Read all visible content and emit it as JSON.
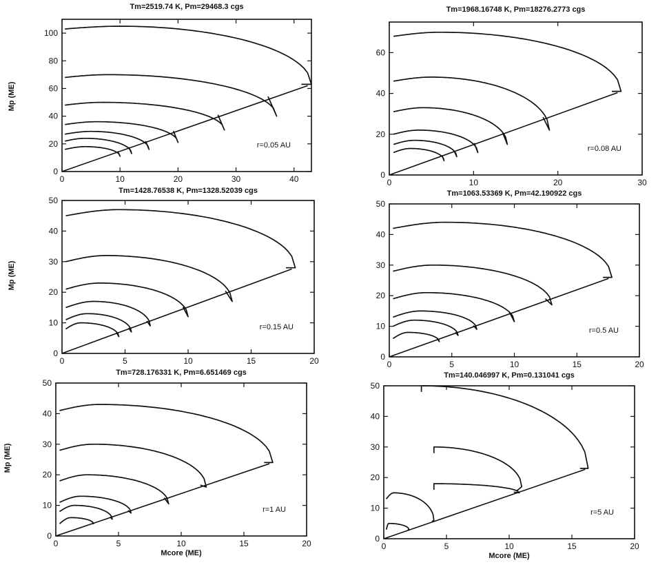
{
  "figure": {
    "y_axis_label": "Mp (ME)",
    "x_axis_label": "Mcore (ME)"
  },
  "chart_data": [
    {
      "type": "line",
      "title": "Tm=2519.74 K, Pm=29468.3 cgs",
      "annotation": "r=0.05 AU",
      "xlim": [
        0,
        43
      ],
      "ylim": [
        0,
        110
      ],
      "xticks": [
        0,
        10,
        20,
        30,
        40
      ],
      "yticks": [
        0,
        20,
        40,
        60,
        80,
        100
      ],
      "envelope_max": [
        43,
        63
      ],
      "curves": [
        {
          "start": 0.5,
          "peak_x": 4,
          "top": 18,
          "tip": [
            10,
            11
          ]
        },
        {
          "start": 0.5,
          "peak_x": 4,
          "top": 24,
          "tip": [
            12,
            13
          ]
        },
        {
          "start": 0.5,
          "peak_x": 5,
          "top": 29,
          "tip": [
            15,
            16
          ]
        },
        {
          "start": 0.5,
          "peak_x": 6,
          "top": 36,
          "tip": [
            20,
            21
          ]
        },
        {
          "start": 0.5,
          "peak_x": 7,
          "top": 50,
          "tip": [
            28,
            30
          ]
        },
        {
          "start": 0.5,
          "peak_x": 8,
          "top": 70,
          "tip": [
            37,
            40
          ]
        },
        {
          "start": 0.5,
          "peak_x": 10,
          "top": 105,
          "tip": [
            43,
            63
          ]
        }
      ]
    },
    {
      "type": "line",
      "title": "Tm=1968.16748 K, Pm=18276.2773 cgs",
      "annotation": "r=0.08 AU",
      "xlim": [
        0,
        30
      ],
      "ylim": [
        0,
        75
      ],
      "xticks": [
        0,
        10,
        20,
        30
      ],
      "yticks": [
        0,
        20,
        40,
        60
      ],
      "envelope_max": [
        27.5,
        41
      ],
      "curves": [
        {
          "start": 0.5,
          "peak_x": 2.5,
          "top": 13,
          "tip": [
            6.5,
            7
          ]
        },
        {
          "start": 0.5,
          "peak_x": 3,
          "top": 17,
          "tip": [
            8,
            9
          ]
        },
        {
          "start": 0.5,
          "peak_x": 3.5,
          "top": 22,
          "tip": [
            10.5,
            11
          ]
        },
        {
          "start": 0.5,
          "peak_x": 4,
          "top": 33,
          "tip": [
            14,
            15
          ]
        },
        {
          "start": 0.5,
          "peak_x": 5,
          "top": 48,
          "tip": [
            19,
            22
          ]
        },
        {
          "start": 0.5,
          "peak_x": 6,
          "top": 70,
          "tip": [
            27.5,
            41
          ]
        }
      ]
    },
    {
      "type": "line",
      "title": "Tm=1428.76538 K, Pm=1328.52039 cgs",
      "annotation": "r=0.15 AU",
      "xlim": [
        0,
        20
      ],
      "ylim": [
        0,
        50
      ],
      "xticks": [
        0,
        5,
        10,
        15,
        20
      ],
      "yticks": [
        0,
        10,
        20,
        30,
        40,
        50
      ],
      "envelope_max": [
        18.5,
        28
      ],
      "curves": [
        {
          "start": 0.3,
          "peak_x": 1.5,
          "top": 10,
          "tip": [
            4.5,
            5.5
          ]
        },
        {
          "start": 0.3,
          "peak_x": 2,
          "top": 13,
          "tip": [
            5.5,
            7
          ]
        },
        {
          "start": 0.3,
          "peak_x": 2.5,
          "top": 17,
          "tip": [
            7,
            9
          ]
        },
        {
          "start": 0.3,
          "peak_x": 3,
          "top": 23,
          "tip": [
            10,
            12
          ]
        },
        {
          "start": 0.3,
          "peak_x": 3.5,
          "top": 32,
          "tip": [
            13.5,
            17
          ]
        },
        {
          "start": 0.3,
          "peak_x": 4.5,
          "top": 47,
          "tip": [
            18.5,
            28
          ]
        }
      ]
    },
    {
      "type": "line",
      "title": "Tm=1063.53369 K, Pm=42.190922 cgs",
      "annotation": "r=0.5 AU",
      "xlim": [
        0,
        20
      ],
      "ylim": [
        0,
        50
      ],
      "xticks": [
        0,
        5,
        10,
        15,
        20
      ],
      "yticks": [
        0,
        10,
        20,
        30,
        40,
        50
      ],
      "envelope_max": [
        17.8,
        26
      ],
      "curves": [
        {
          "start": 0.3,
          "peak_x": 1.5,
          "top": 8,
          "tip": [
            4,
            5
          ]
        },
        {
          "start": 0.3,
          "peak_x": 2,
          "top": 12,
          "tip": [
            5.5,
            7
          ]
        },
        {
          "start": 0.3,
          "peak_x": 2.5,
          "top": 15,
          "tip": [
            7,
            9
          ]
        },
        {
          "start": 0.3,
          "peak_x": 3,
          "top": 21,
          "tip": [
            10,
            11.5
          ]
        },
        {
          "start": 0.3,
          "peak_x": 3.5,
          "top": 30,
          "tip": [
            13,
            17
          ]
        },
        {
          "start": 0.3,
          "peak_x": 4.5,
          "top": 44,
          "tip": [
            17.8,
            26
          ]
        }
      ]
    },
    {
      "type": "line",
      "title": "Tm=728.176331 K, Pm=6.651469 cgs",
      "annotation": "r=1 AU",
      "xlim": [
        0,
        20
      ],
      "ylim": [
        0,
        50
      ],
      "xticks": [
        0,
        5,
        10,
        15,
        20
      ],
      "yticks": [
        0,
        10,
        20,
        30,
        40,
        50
      ],
      "envelope_max": [
        17.3,
        24
      ],
      "curves": [
        {
          "start": 0.3,
          "peak_x": 1.2,
          "top": 6,
          "tip": [
            3,
            4
          ]
        },
        {
          "start": 0.3,
          "peak_x": 1.5,
          "top": 10,
          "tip": [
            4.5,
            5.5
          ]
        },
        {
          "start": 0.3,
          "peak_x": 2,
          "top": 13,
          "tip": [
            6,
            7.5
          ]
        },
        {
          "start": 0.3,
          "peak_x": 2.5,
          "top": 20,
          "tip": [
            9,
            10.5
          ]
        },
        {
          "start": 0.3,
          "peak_x": 3,
          "top": 30,
          "tip": [
            12,
            16
          ]
        },
        {
          "start": 0.3,
          "peak_x": 3.5,
          "top": 43,
          "tip": [
            17.3,
            24
          ]
        }
      ]
    },
    {
      "type": "line",
      "title": "Tm=140.046997 K, Pm=0.131041 cgs",
      "annotation": "r=5 AU",
      "xlim": [
        0,
        20
      ],
      "ylim": [
        0,
        50
      ],
      "xticks": [
        0,
        5,
        10,
        15,
        20
      ],
      "yticks": [
        0,
        10,
        20,
        30,
        40,
        50
      ],
      "envelope_max": [
        16.3,
        23
      ],
      "curves": [
        {
          "start": 0.2,
          "peak_x": 0.4,
          "top": 5,
          "tip": [
            2,
            3
          ]
        },
        {
          "start": 0.2,
          "peak_x": 0.8,
          "top": 15,
          "tip": [
            4,
            6
          ]
        },
        {
          "start": 4.0,
          "peak_x": 4.0,
          "top": 18,
          "tip": [
            10.8,
            15
          ]
        },
        {
          "start": 4.0,
          "peak_x": 4.0,
          "top": 30,
          "tip": [
            11,
            17
          ]
        },
        {
          "start": 3.0,
          "peak_x": 3.0,
          "top": 50,
          "tip": [
            16.3,
            23
          ]
        }
      ]
    }
  ]
}
